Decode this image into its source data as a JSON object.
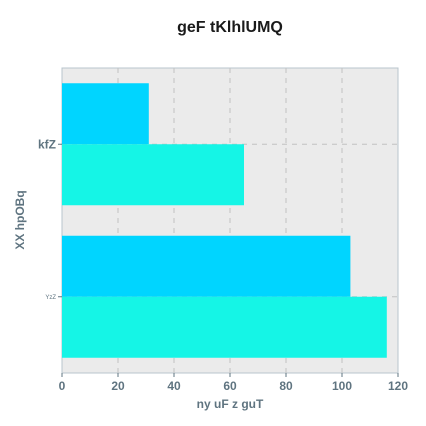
{
  "chart_data": {
    "type": "bar",
    "orientation": "horizontal",
    "title": "geF tKlhlUMQ",
    "xlabel": "ny uF z guT",
    "ylabel": "XX hpOBq",
    "categories": [
      "kfZ",
      "YzZ"
    ],
    "series": [
      {
        "values": [
          31,
          103
        ],
        "color": "#00d5ff"
      },
      {
        "values": [
          65,
          116
        ],
        "color": "#15f5e6"
      }
    ],
    "xlim": [
      0,
      120
    ],
    "xticks": [
      "0",
      "20",
      "40",
      "60",
      "80",
      "100",
      "120"
    ],
    "grid": true,
    "plot_background": "#ebebeb"
  }
}
